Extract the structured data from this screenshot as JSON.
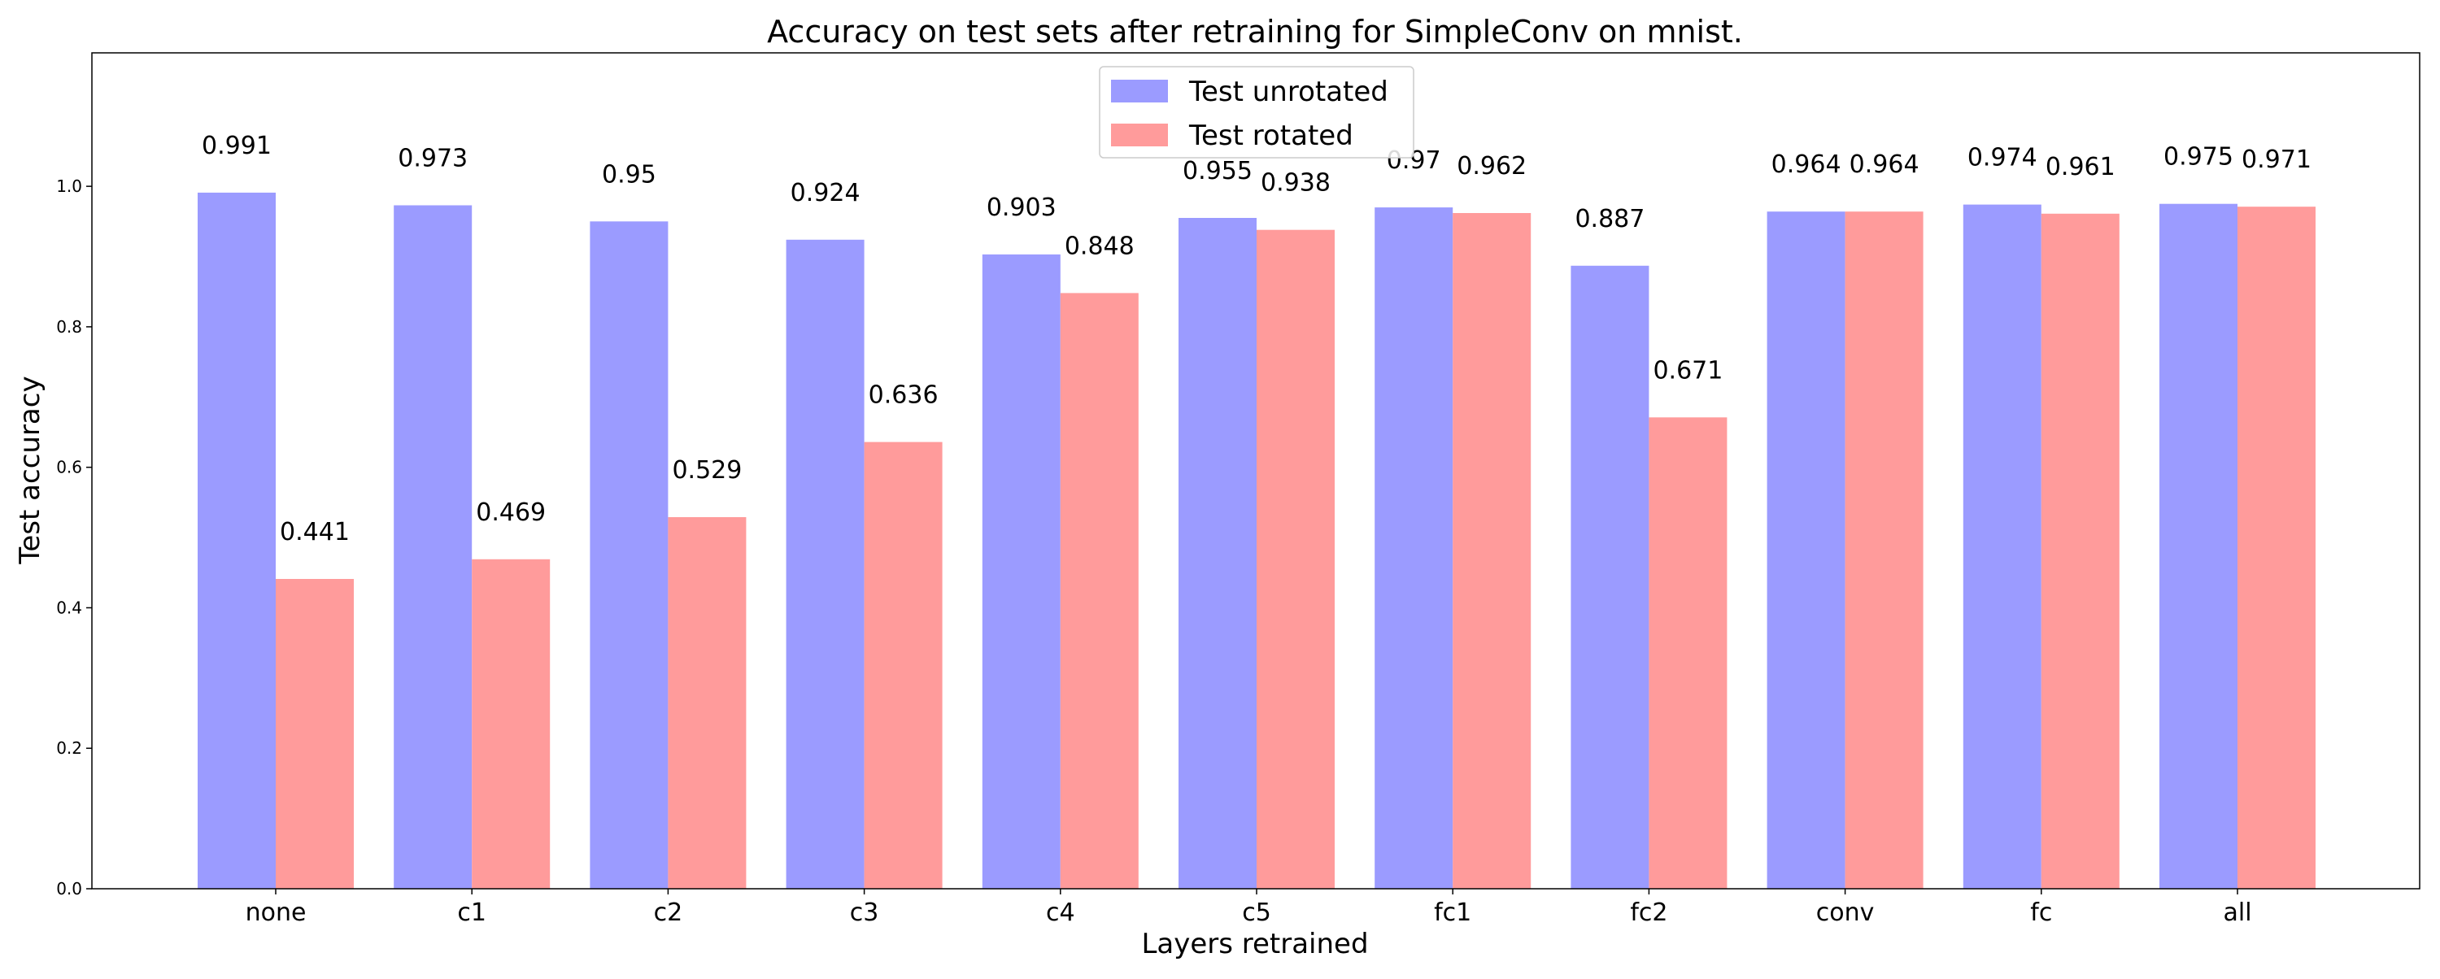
{
  "chart_data": {
    "type": "bar",
    "title": "Accuracy on test sets after retraining for SimpleConv on mnist.",
    "xlabel": "Layers retrained",
    "ylabel": "Test accuracy",
    "categories": [
      "none",
      "c1",
      "c2",
      "c3",
      "c4",
      "c5",
      "fc1",
      "fc2",
      "conv",
      "fc",
      "all"
    ],
    "series": [
      {
        "name": "Test unrotated",
        "color": "#9b9bff",
        "values": [
          0.991,
          0.973,
          0.95,
          0.924,
          0.903,
          0.955,
          0.97,
          0.887,
          0.964,
          0.974,
          0.975
        ],
        "value_labels": [
          "0.991",
          "0.973",
          "0.95",
          "0.924",
          "0.903",
          "0.955",
          "0.97",
          "0.887",
          "0.964",
          "0.974",
          "0.975"
        ]
      },
      {
        "name": "Test rotated",
        "color": "#ff9b9b",
        "values": [
          0.441,
          0.469,
          0.529,
          0.636,
          0.848,
          0.938,
          0.962,
          0.671,
          0.964,
          0.961,
          0.971
        ],
        "value_labels": [
          "0.441",
          "0.469",
          "0.529",
          "0.636",
          "0.848",
          "0.938",
          "0.962",
          "0.671",
          "0.964",
          "0.961",
          "0.971"
        ]
      }
    ],
    "ylim": [
      0,
      1.19
    ],
    "yticks": [
      0.0,
      0.2,
      0.4,
      0.6,
      0.8,
      1.0
    ],
    "ytick_labels": [
      "0.0",
      "0.2",
      "0.4",
      "0.6",
      "0.8",
      "1.0"
    ],
    "grid": false,
    "legend_position": "top-center"
  }
}
